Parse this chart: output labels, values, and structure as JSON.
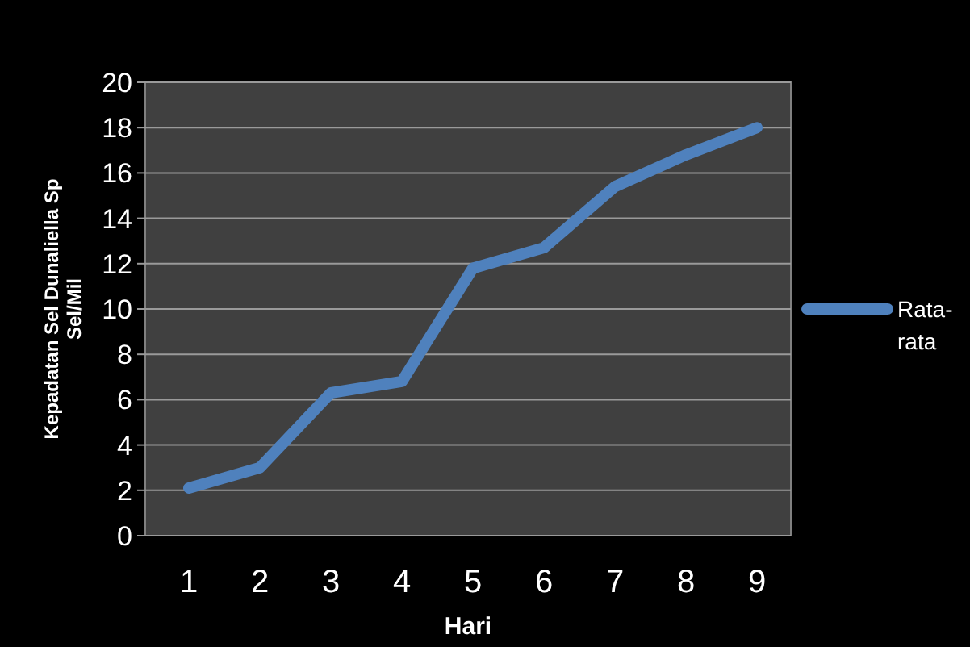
{
  "chart_data": {
    "type": "line",
    "xlabel": "Hari",
    "ylabel": "Kepadatan Sel Dunaliella Sp Sel/Mil",
    "categories": [
      "1",
      "2",
      "3",
      "4",
      "5",
      "6",
      "7",
      "8",
      "9"
    ],
    "series": [
      {
        "name": "Rata-rata",
        "color": "#4f81bd",
        "values": [
          2.1,
          3.0,
          6.3,
          6.8,
          11.8,
          12.7,
          15.4,
          16.8,
          18.0
        ]
      }
    ],
    "ylim": [
      0,
      20
    ],
    "yticks": [
      0,
      2,
      4,
      6,
      8,
      10,
      12,
      14,
      16,
      18,
      20
    ],
    "grid": "y",
    "legend": "right",
    "marker": "none",
    "line_style": "solid"
  }
}
